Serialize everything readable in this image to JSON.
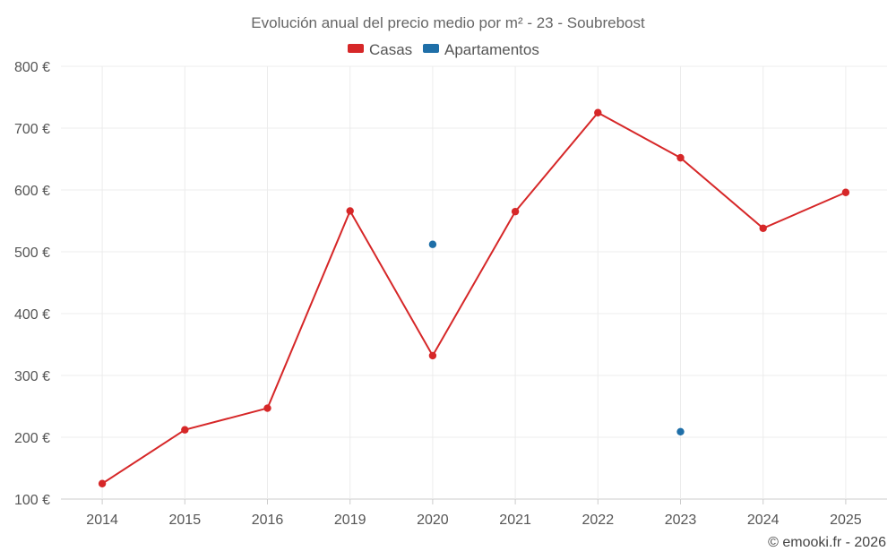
{
  "chart_data": {
    "type": "line",
    "title": "Evolución anual del precio medio por m² - 23 - Soubrebost",
    "categories": [
      "2014",
      "2015",
      "2016",
      "2019",
      "2020",
      "2021",
      "2022",
      "2023",
      "2024",
      "2025"
    ],
    "ylim": [
      100,
      800
    ],
    "yticks": [
      100,
      200,
      300,
      400,
      500,
      600,
      700,
      800
    ],
    "ytick_labels": [
      "100 €",
      "200 €",
      "300 €",
      "400 €",
      "500 €",
      "600 €",
      "700 €",
      "800 €"
    ],
    "grid": true,
    "legend_position": "top-center",
    "series": [
      {
        "name": "Casas",
        "color": "#d62728",
        "values": [
          125,
          212,
          247,
          566,
          332,
          565,
          725,
          652,
          538,
          596
        ]
      },
      {
        "name": "Apartamentos",
        "color": "#1f6fa8",
        "values": [
          null,
          null,
          null,
          null,
          512,
          null,
          null,
          209,
          null,
          null
        ]
      }
    ],
    "credit": "© emooki.fr - 2026"
  }
}
